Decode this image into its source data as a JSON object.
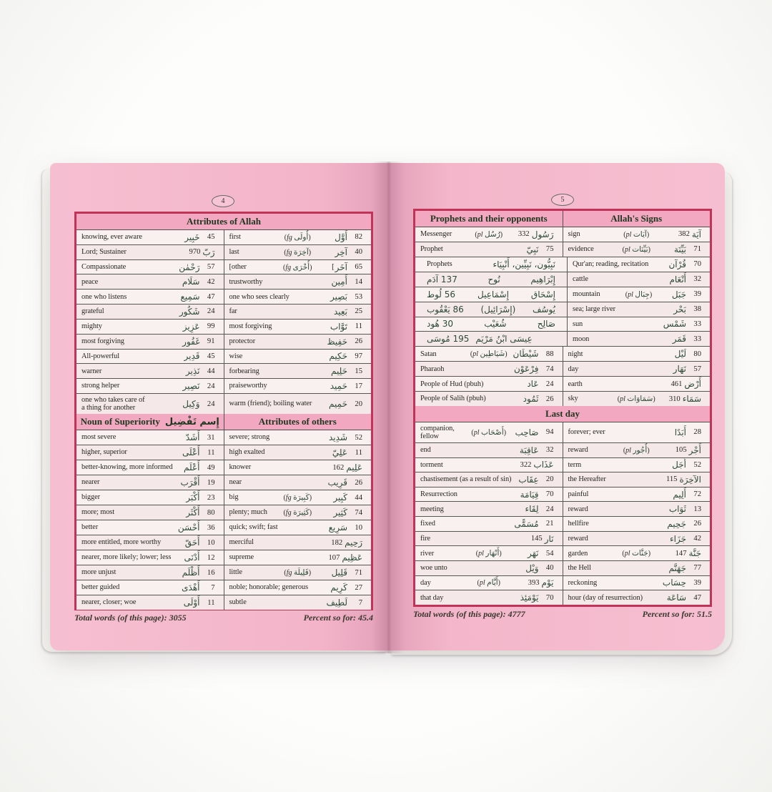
{
  "colors": {
    "table_border": "#c23457",
    "page_pink": "#f3b6ca",
    "header_band": "#f2a8c1",
    "row_light": "#f9f1f0",
    "row_alt": "#f4e9e8",
    "english_text": "#27271f",
    "arabic_text": "#2d4a36",
    "rule": "#565653"
  },
  "pages": [
    {
      "number": "4",
      "footer": {
        "total": "Total words (of this page): 3055",
        "percent": "Percent so for: 45.4"
      },
      "sections": [
        {
          "header": {
            "cells": [
              {
                "text": "Attributes of Allah"
              }
            ]
          },
          "left_rows": [
            {
              "en": "knowing, ever aware",
              "ar": "خَبِير",
              "n": 45
            },
            {
              "en": "Lord; Sustainer",
              "ar": "رَبّ",
              "n": 970
            },
            {
              "en": "Compassionate",
              "ar": "رَحْمٰن",
              "n": 57
            },
            {
              "en": "peace",
              "ar": "سَلَام",
              "n": 42
            },
            {
              "en": "one who listens",
              "ar": "سَمِيع",
              "n": 47
            },
            {
              "en": "grateful",
              "ar": "شَكُور",
              "n": 24
            },
            {
              "en": "mighty",
              "ar": "عَزِيز",
              "n": 99
            },
            {
              "en": "most forgiving",
              "ar": "غَفُور",
              "n": 91
            },
            {
              "en": "All-powerful",
              "ar": "قَدِير",
              "n": 45
            },
            {
              "en": "warner",
              "ar": "نَذِير",
              "n": 44
            },
            {
              "en": "strong helper",
              "ar": "نَصِير",
              "n": 24
            },
            {
              "en": "one who takes care of|a thing for another",
              "ar": "وَكِيل",
              "n": 24,
              "tall": true
            }
          ],
          "right_rows": [
            {
              "en": "first",
              "note": {
                "t": "fg",
                "a": "أُولَى"
              },
              "ar": "أَوَّل",
              "n": 82
            },
            {
              "en": "last",
              "note": {
                "t": "fg",
                "a": "آخِرَة"
              },
              "ar": "آخِر",
              "n": 40
            },
            {
              "en": "[other",
              "note": {
                "t": "fg",
                "a": "أُخْرَى"
              },
              "ar": "آخَر",
              "n": 65,
              "brk": "["
            },
            {
              "en": "trustworthy",
              "ar": "أَمِين",
              "n": 14
            },
            {
              "en": "one who sees clearly",
              "ar": "بَصِير",
              "n": 53
            },
            {
              "en": "far",
              "ar": "بَعِيد",
              "n": 25
            },
            {
              "en": "most forgiving",
              "ar": "تَوَّاب",
              "n": 11
            },
            {
              "en": "protector",
              "ar": "حَفِيظ",
              "n": 26
            },
            {
              "en": "wise",
              "ar": "حَكِيم",
              "n": 97
            },
            {
              "en": "forbearing",
              "ar": "حَلِيم",
              "n": 15
            },
            {
              "en": "praiseworthy",
              "ar": "حَمِيد",
              "n": 17
            },
            {
              "en": "warm (friend); boiling water",
              "ar": "حَمِيم",
              "n": 20
            }
          ]
        },
        {
          "header": {
            "cells": [
              {
                "text": "Noun of Superiority",
                "ar": "إِسم تَفْضِيل"
              },
              {
                "text": "Attributes of others"
              }
            ]
          },
          "left_rows": [
            {
              "en": "most severe",
              "ar": "أَشَدّ",
              "n": 31
            },
            {
              "en": "higher, superior",
              "ar": "أَعْلَى",
              "n": 11
            },
            {
              "en": "better-knowing, more informed",
              "ar": "أَعْلَم",
              "n": 49
            },
            {
              "en": "nearer",
              "ar": "أَقْرَب",
              "n": 19
            },
            {
              "en": "bigger",
              "ar": "أَكْبَر",
              "n": 23
            },
            {
              "en": "more; most",
              "ar": "أَكْثَر",
              "n": 80
            },
            {
              "en": "better",
              "ar": "أَحْسَن",
              "n": 36
            },
            {
              "en": "more entitled, more worthy",
              "ar": "أَحَقّ",
              "n": 10
            },
            {
              "en": "nearer, more likely; lower; less",
              "ar": "أَدْنَى",
              "n": 12
            },
            {
              "en": "more unjust",
              "ar": "أَظْلَم",
              "n": 16
            },
            {
              "en": "better guided",
              "ar": "أَهْدَى",
              "n": 7
            },
            {
              "en": "nearer, closer; woe",
              "ar": "أَوْلَى",
              "n": 11
            }
          ],
          "right_rows": [
            {
              "en": "severe; strong",
              "ar": "شَدِيد",
              "n": 52
            },
            {
              "en": "high exalted",
              "ar": "عَلِيّ",
              "n": 11
            },
            {
              "en": "knower",
              "ar": "عَلِيم",
              "n": 162
            },
            {
              "en": "near",
              "ar": "قَرِيب",
              "n": 26
            },
            {
              "en": "big",
              "note": {
                "t": "fg",
                "a": "كَبِيرَة"
              },
              "ar": "كَبِير",
              "n": 44
            },
            {
              "en": "plenty; much",
              "note": {
                "t": "fg",
                "a": "كَثِيرَة"
              },
              "ar": "كَثِير",
              "n": 74
            },
            {
              "en": "quick; swift; fast",
              "ar": "سَرِيع",
              "n": 10
            },
            {
              "en": "merciful",
              "ar": "رَحِيم",
              "n": 182
            },
            {
              "en": "supreme",
              "ar": "عَظِيم",
              "n": 107
            },
            {
              "en": "little",
              "note": {
                "t": "fg",
                "a": "قَلِيلَة"
              },
              "ar": "قَلِيل",
              "n": 71
            },
            {
              "en": "noble; honorable; generous",
              "ar": "كَرِيم",
              "n": 27
            },
            {
              "en": "subtle",
              "ar": "لَطِيف",
              "n": 7
            }
          ]
        }
      ]
    },
    {
      "number": "5",
      "footer": {
        "total": "Total words (of this page): 4777",
        "percent": "Percent so for: 51.5"
      },
      "sections": [
        {
          "header": {
            "cells": [
              {
                "text": "Prophets and their opponents"
              },
              {
                "text": "Allah's Signs"
              }
            ]
          },
          "left_rows": [
            {
              "en": "Messenger",
              "note": {
                "t": "pl",
                "a": "رُسُل"
              },
              "ar": "رَسُول",
              "n": 332
            },
            {
              "en": "Prophet",
              "ar": "نَبِيّ",
              "n": 75
            },
            {
              "type": "names",
              "en": "Prophets",
              "layout": "center",
              "items": [
                "نَبِيُّون، نَبِيِّين، أَنْبِيَاء"
              ]
            },
            {
              "type": "names",
              "layout": "spread",
              "items": [
                "137 آدَم",
                "نُوح",
                "إِبْرَاهِيم"
              ]
            },
            {
              "type": "names",
              "layout": "spread",
              "items": [
                "56 لُوط",
                "إِسْمَاعِيل",
                "إِسْحَاق"
              ]
            },
            {
              "type": "names",
              "layout": "spread",
              "items": [
                "86 يَعْقُوب",
                "(إِسْرَائِيل)",
                "يُوسُف"
              ]
            },
            {
              "type": "names",
              "layout": "spread",
              "items": [
                "30 هُود",
                "شُعَيْب",
                "صَالِح"
              ]
            },
            {
              "type": "names",
              "layout": "start",
              "items": [
                "195 مُوسَى",
                "عِيسَى ابْنُ مَرْيَم"
              ]
            },
            {
              "en": "Satan",
              "note": {
                "t": "pl",
                "a": "شَيَاطِين"
              },
              "ar": "شَيْطَان",
              "n": 88
            },
            {
              "en": "Pharaoh",
              "ar": "فِرْعَوْن",
              "n": 74
            },
            {
              "en": "People of Hud (pbuh)",
              "ar": "عَاد",
              "n": 24
            },
            {
              "en": "People of Salih (pbuh)",
              "ar": "ثَمُود",
              "n": 26
            }
          ],
          "right_rows": [
            {
              "en": "sign",
              "note": {
                "t": "pl",
                "a": "آيَات"
              },
              "ar": "آيَة",
              "n": 382
            },
            {
              "en": "evidence",
              "note": {
                "t": "pl",
                "a": "بَيِّنَات"
              },
              "ar": "بَيِّنَة",
              "n": 71
            },
            {
              "en": "Qur'an; reading, recitation",
              "ar": "قُرْآن",
              "n": 70
            },
            {
              "en": "cattle",
              "ar": "أَنْعَام",
              "n": 32
            },
            {
              "en": "mountain",
              "note": {
                "t": "pl",
                "a": "جِبَال"
              },
              "ar": "جَبَل",
              "n": 39
            },
            {
              "en": "sea; large river",
              "ar": "بَحْر",
              "n": 38
            },
            {
              "en": "sun",
              "ar": "شَمْس",
              "n": 33
            },
            {
              "en": "moon",
              "ar": "قَمَر",
              "n": 33
            },
            {
              "en": "night",
              "ar": "لَيْل",
              "n": 80
            },
            {
              "en": "day",
              "ar": "نَهَار",
              "n": 57
            },
            {
              "en": "earth",
              "ar": "أَرْض",
              "n": 461
            },
            {
              "en": "sky",
              "note": {
                "t": "pl",
                "a": "سَمَاوَات"
              },
              "ar": "سَمَاء",
              "n": 310
            }
          ]
        },
        {
          "header": {
            "cells": [
              {
                "text": "Last day"
              }
            ]
          },
          "left_rows": [
            {
              "en": "companion,|fellow",
              "note": {
                "t": "pl",
                "a": "أَصْحَاب"
              },
              "ar": "صَاحِب",
              "n": 94,
              "tall": true
            },
            {
              "en": "end",
              "ar": "عَاقِبَة",
              "n": 32
            },
            {
              "en": "torment",
              "ar": "عَذَاب",
              "n": 322
            },
            {
              "en": "chastisement (as a result of sin)",
              "ar": "عِقَاب",
              "n": 20
            },
            {
              "en": "Resurrection",
              "ar": "قِيَامَة",
              "n": 70
            },
            {
              "en": "meeting",
              "ar": "لِقَاء",
              "n": 24
            },
            {
              "en": "fixed",
              "ar": "مُسَمًّى",
              "n": 21
            },
            {
              "en": "fire",
              "ar": "نَار",
              "n": 145
            },
            {
              "en": "river",
              "note": {
                "t": "pl",
                "a": "أَنْهَار"
              },
              "ar": "نَهَر",
              "n": 54
            },
            {
              "en": "woe unto",
              "ar": "وَيْل",
              "n": 40
            },
            {
              "en": "day",
              "note": {
                "t": "pl",
                "a": "أَيَّام"
              },
              "ar": "يَوْم",
              "n": 393
            },
            {
              "en": "that day",
              "ar": "يَوْمَئِذ",
              "n": 70
            }
          ],
          "right_rows": [
            {
              "en": "forever; ever",
              "ar": "أَبَدًا",
              "n": 28
            },
            {
              "en": "reward",
              "note": {
                "t": "pl",
                "a": "أُجُور"
              },
              "ar": "أَجْر",
              "n": 105
            },
            {
              "en": "term",
              "ar": "أَجَل",
              "n": 52
            },
            {
              "en": "the Hereafter",
              "ar": "الآخِرَة",
              "n": 115
            },
            {
              "en": "painful",
              "ar": "أَلِيم",
              "n": 72
            },
            {
              "en": "reward",
              "ar": "ثَوَاب",
              "n": 13
            },
            {
              "en": "hellfire",
              "ar": "جَحِيم",
              "n": 26
            },
            {
              "en": "reward",
              "ar": "جَزَاء",
              "n": 42
            },
            {
              "en": "garden",
              "note": {
                "t": "pl",
                "a": "جَنَّات"
              },
              "ar": "جَنَّة",
              "n": 147
            },
            {
              "en": "the Hell",
              "ar": "جَهَنَّم",
              "n": 77
            },
            {
              "en": "reckoning",
              "ar": "حِسَاب",
              "n": 39
            },
            {
              "en": "hour (day of resurrection)",
              "ar": "سَاعَة",
              "n": 47
            }
          ]
        }
      ]
    }
  ]
}
